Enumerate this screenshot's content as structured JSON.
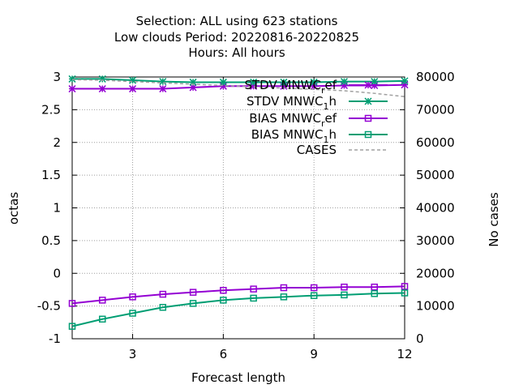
{
  "title_lines": [
    "Selection: ALL using   623 stations",
    "Low clouds   Period: 20220816-20220825",
    "Hours:  All hours"
  ],
  "chart_data": {
    "type": "line",
    "xlabel": "Forecast length",
    "ylabel": "octas",
    "y2label": "No cases",
    "xlim": [
      1,
      12
    ],
    "ylim": [
      -1,
      3
    ],
    "y2lim": [
      0,
      80000
    ],
    "x_ticks": [
      3,
      6,
      9,
      12
    ],
    "y_ticks": [
      -1,
      -0.5,
      0,
      0.5,
      1,
      1.5,
      2,
      2.5,
      3
    ],
    "y_tick_labels": [
      "-1",
      "-0.5",
      "0",
      "0.5",
      "1",
      "1.5",
      "2",
      "2.5",
      "3"
    ],
    "y2_ticks": [
      0,
      10000,
      20000,
      30000,
      40000,
      50000,
      60000,
      70000,
      80000
    ],
    "grid": true,
    "legend_position": "top-right",
    "x": [
      1,
      2,
      3,
      4,
      5,
      6,
      7,
      8,
      9,
      10,
      11,
      12
    ],
    "series": [
      {
        "name": "STDV MNWC_ref",
        "legend_main": "STDV MNWC",
        "legend_sub": "r",
        "legend_tail": "ef",
        "axis": "y1",
        "color": "#9400d3",
        "marker": "star",
        "values": [
          2.82,
          2.82,
          2.82,
          2.82,
          2.84,
          2.86,
          2.86,
          2.86,
          2.86,
          2.87,
          2.87,
          2.88
        ]
      },
      {
        "name": "STDV MNWC_1h",
        "legend_main": "STDV MNWC",
        "legend_sub": "1",
        "legend_tail": "h",
        "axis": "y1",
        "color": "#009e73",
        "marker": "star",
        "values": [
          2.97,
          2.97,
          2.95,
          2.93,
          2.92,
          2.92,
          2.92,
          2.92,
          2.92,
          2.93,
          2.93,
          2.94
        ]
      },
      {
        "name": "BIAS MNWC_ref",
        "legend_main": "BIAS MNWC",
        "legend_sub": "r",
        "legend_tail": "ef",
        "axis": "y1",
        "color": "#9400d3",
        "marker": "square",
        "values": [
          -0.46,
          -0.41,
          -0.36,
          -0.32,
          -0.29,
          -0.26,
          -0.24,
          -0.22,
          -0.22,
          -0.21,
          -0.21,
          -0.2
        ]
      },
      {
        "name": "BIAS MNWC_1h",
        "legend_main": "BIAS MNWC",
        "legend_sub": "1",
        "legend_tail": "h",
        "axis": "y1",
        "color": "#009e73",
        "marker": "square",
        "values": [
          -0.81,
          -0.7,
          -0.61,
          -0.52,
          -0.46,
          -0.41,
          -0.38,
          -0.36,
          -0.34,
          -0.33,
          -0.31,
          -0.3
        ]
      },
      {
        "name": "CASES",
        "legend_main": "CASES",
        "legend_sub": "",
        "legend_tail": "",
        "axis": "y2",
        "color": "#a0a0a0",
        "marker": "none",
        "dashed": true,
        "values": [
          79200,
          79000,
          78600,
          78200,
          77800,
          77400,
          77000,
          76600,
          76200,
          75800,
          75000,
          74000
        ]
      }
    ]
  }
}
